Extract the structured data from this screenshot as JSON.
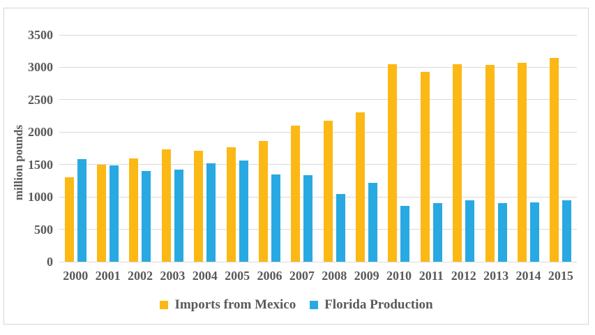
{
  "chart_data": {
    "type": "bar",
    "title": "",
    "ylabel": "million pounds",
    "xlabel": "",
    "ylim": [
      0,
      3500
    ],
    "yticks": [
      0,
      500,
      1000,
      1500,
      2000,
      2500,
      3000,
      3500
    ],
    "grid": true,
    "legend_position": "bottom",
    "categories": [
      "2000",
      "2001",
      "2002",
      "2003",
      "2004",
      "2005",
      "2006",
      "2007",
      "2008",
      "2009",
      "2010",
      "2011",
      "2012",
      "2013",
      "2014",
      "2015"
    ],
    "series": [
      {
        "name": "Imports from Mexico",
        "id": "imports-from-mexico",
        "color": "#FCB814",
        "values": [
          1300,
          1500,
          1595,
          1730,
          1715,
          1765,
          1865,
          2095,
          2180,
          2310,
          3045,
          2925,
          3045,
          3040,
          3065,
          3145
        ]
      },
      {
        "name": "Florida Production",
        "id": "florida-production",
        "color": "#29A9E1",
        "values": [
          1580,
          1490,
          1400,
          1420,
          1515,
          1560,
          1350,
          1335,
          1040,
          1220,
          860,
          910,
          950,
          900,
          920,
          945
        ]
      }
    ]
  },
  "colors": {
    "text": "#595959",
    "gridline": "#d9d9d9",
    "frame_border": "#d6d6d6",
    "background": "#ffffff"
  }
}
